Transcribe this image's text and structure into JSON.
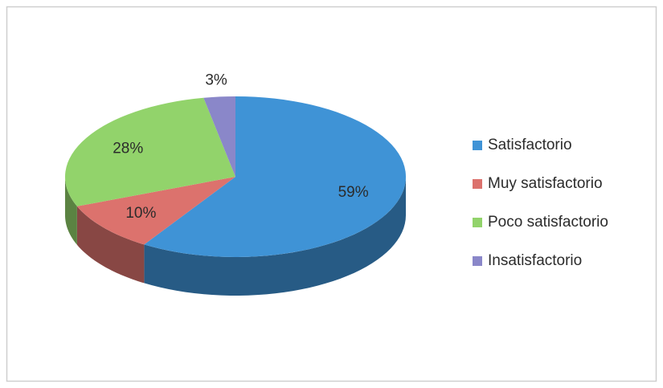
{
  "chart_data": {
    "type": "pie",
    "categories": [
      "Satisfactorio",
      "Muy satisfactorio",
      "Poco satisfactorio",
      "Insatisfactorio"
    ],
    "values": [
      59,
      10,
      28,
      3
    ],
    "value_labels": [
      "59%",
      "10%",
      "28%",
      "3%"
    ],
    "colors": [
      "#3f93d6",
      "#dc726d",
      "#92d36b",
      "#8a87c9"
    ],
    "legend": "right"
  }
}
